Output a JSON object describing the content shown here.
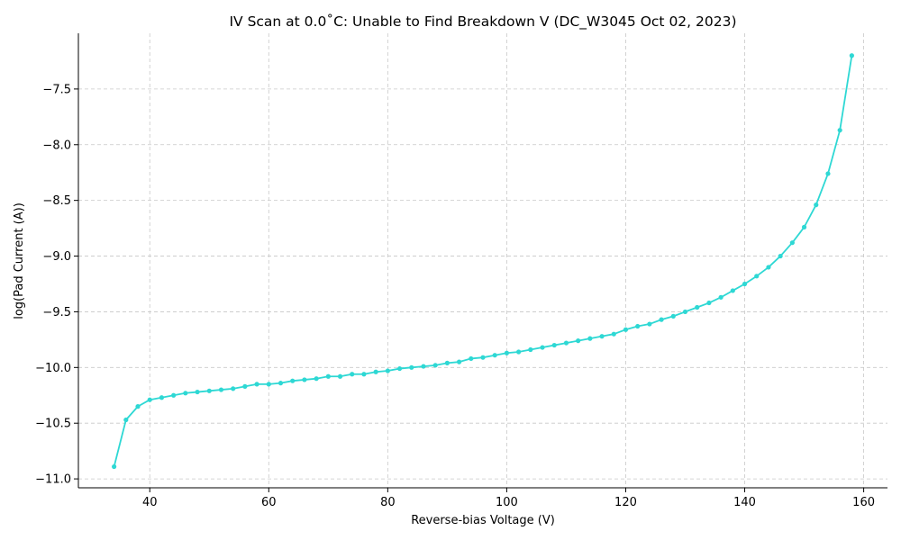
{
  "chart_data": {
    "type": "line",
    "title": "IV Scan at 0.0˚C: Unable to Find Breakdown V (DC_W3045 Oct 02, 2023)",
    "xlabel": "Reverse-bias Voltage (V)",
    "ylabel": "log(Pad Current (A))",
    "xlim": [
      28,
      164
    ],
    "ylim": [
      -11.08,
      -7.0
    ],
    "xticks": [
      40,
      60,
      80,
      100,
      120,
      140,
      160
    ],
    "xtick_labels": [
      "40",
      "60",
      "80",
      "100",
      "120",
      "140",
      "160"
    ],
    "yticks": [
      -11.0,
      -10.5,
      -10.0,
      -9.5,
      -9.0,
      -8.5,
      -8.0,
      -7.5
    ],
    "ytick_labels": [
      "−11.0",
      "−10.5",
      "−10.0",
      "−9.5",
      "−9.0",
      "−8.5",
      "−8.0",
      "−7.5"
    ],
    "grid": true,
    "color": "#2ed8d4",
    "series": [
      {
        "x": [
          34,
          36,
          38,
          40,
          42,
          44,
          46,
          48,
          50,
          52,
          54,
          56,
          58,
          60,
          62,
          64,
          66,
          68,
          70,
          72,
          74,
          76,
          78,
          80,
          82,
          84,
          86,
          88,
          90,
          92,
          94,
          96,
          98,
          100,
          102,
          104,
          106,
          108,
          110,
          112,
          114,
          116,
          118,
          120,
          122,
          124,
          126,
          128,
          130,
          132,
          134,
          136,
          138,
          140,
          142,
          144,
          146,
          148,
          150,
          152,
          154,
          156,
          158
        ],
        "y": [
          -10.89,
          -10.47,
          -10.35,
          -10.29,
          -10.27,
          -10.25,
          -10.23,
          -10.22,
          -10.21,
          -10.2,
          -10.19,
          -10.17,
          -10.15,
          -10.15,
          -10.14,
          -10.12,
          -10.11,
          -10.1,
          -10.08,
          -10.08,
          -10.06,
          -10.06,
          -10.04,
          -10.03,
          -10.01,
          -10.0,
          -9.99,
          -9.98,
          -9.96,
          -9.95,
          -9.92,
          -9.91,
          -9.89,
          -9.87,
          -9.86,
          -9.84,
          -9.82,
          -9.8,
          -9.78,
          -9.76,
          -9.74,
          -9.72,
          -9.7,
          -9.66,
          -9.63,
          -9.61,
          -9.57,
          -9.54,
          -9.5,
          -9.46,
          -9.42,
          -9.37,
          -9.31,
          -9.25,
          -9.18,
          -9.1,
          -9.0,
          -8.88,
          -8.74,
          -8.54,
          -8.26,
          -7.87,
          -7.2
        ]
      }
    ]
  }
}
